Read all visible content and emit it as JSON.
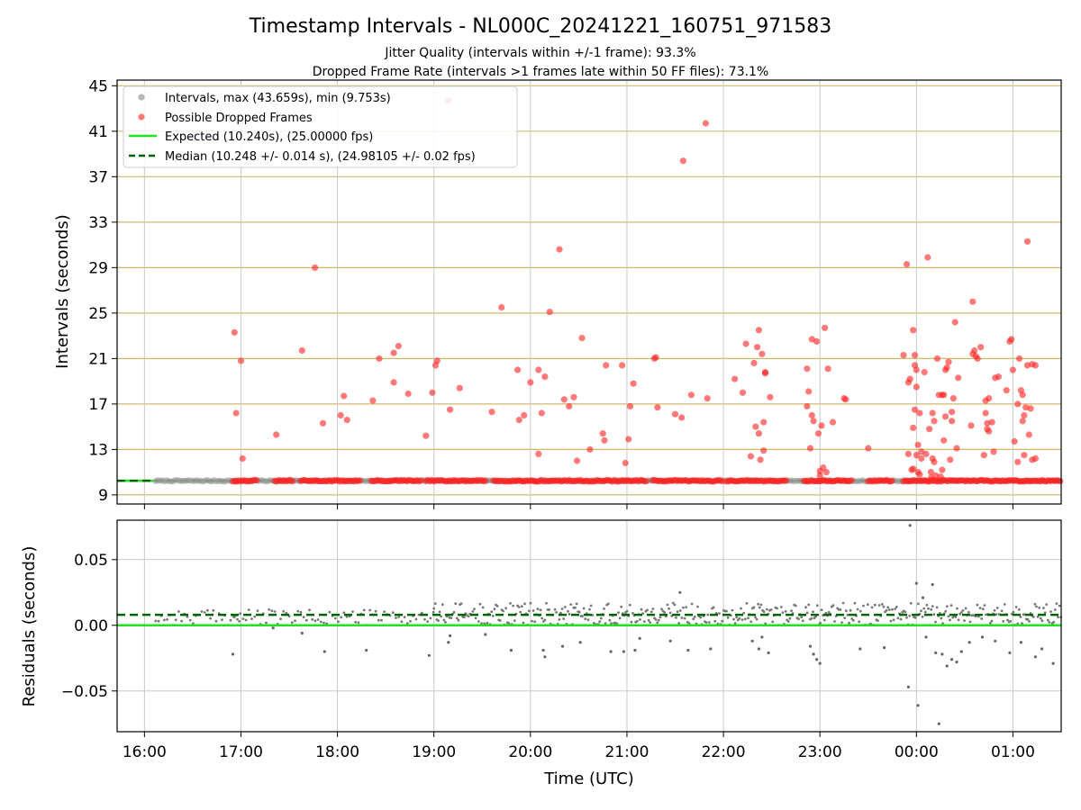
{
  "chart_data": [
    {
      "type": "scatter",
      "title": "Timestamp Intervals - NL000C_20241221_160751_971583",
      "subtitle_lines": [
        "Jitter Quality (intervals within +/-1 frame): 93.3%",
        "Dropped Frame Rate (intervals >1 frames late within 50 FF files): 73.1%"
      ],
      "xlabel": "",
      "ylabel": "Intervals (seconds)",
      "xlim": [
        "15:43",
        "01:30"
      ],
      "ylim": [
        8.2,
        45.5
      ],
      "ytick_labels": [
        "9",
        "13",
        "17",
        "21",
        "25",
        "29",
        "33",
        "37",
        "41",
        "45"
      ],
      "grid": true,
      "legend_position": "upper-left",
      "legend": [
        "Intervals, max (43.659s), min (9.753s)",
        "Possible Dropped Frames",
        "Expected (10.240s), (25.00000 fps)",
        "Median (10.248 +/- 0.014 s), (24.98105 +/- 0.02 fps)"
      ],
      "colors": {
        "intervals": "#9a9a9a",
        "dropped": "#ff2020",
        "expected": "#1ee41e",
        "median": "#006400",
        "hgrid": "#d2b86e",
        "vgrid": "#c8c8c8"
      },
      "expected_value": 10.24,
      "median_value": 10.248,
      "normal_interval_segments": [
        [
          "16:07",
          "01:30"
        ]
      ],
      "dropped_baseline_segments": [
        [
          "16:55",
          "17:10"
        ],
        [
          "17:21",
          "17:33"
        ],
        [
          "17:37",
          "18:14"
        ],
        [
          "18:21",
          "18:53"
        ],
        [
          "18:55",
          "19:33"
        ],
        [
          "19:37",
          "21:12"
        ],
        [
          "21:16",
          "22:00"
        ],
        [
          "22:02",
          "22:40"
        ],
        [
          "22:50",
          "23:20"
        ],
        [
          "23:30",
          "23:45"
        ],
        [
          "23:52",
          "01:30"
        ]
      ],
      "dropped_points": [
        [
          "16:56",
          23.3
        ],
        [
          "16:57",
          16.2
        ],
        [
          "17:00",
          20.8
        ],
        [
          "17:01",
          12.2
        ],
        [
          "17:22",
          14.3
        ],
        [
          "17:38",
          21.7
        ],
        [
          "17:46",
          29.0
        ],
        [
          "17:51",
          15.3
        ],
        [
          "18:02",
          16.0
        ],
        [
          "18:04",
          17.7
        ],
        [
          "18:06",
          15.6
        ],
        [
          "18:22",
          17.3
        ],
        [
          "18:26",
          21.0
        ],
        [
          "18:35",
          21.5
        ],
        [
          "18:35",
          18.9
        ],
        [
          "18:38",
          22.1
        ],
        [
          "18:44",
          17.9
        ],
        [
          "18:55",
          14.2
        ],
        [
          "18:59",
          18.0
        ],
        [
          "19:01",
          20.4
        ],
        [
          "19:02",
          20.8
        ],
        [
          "19:09",
          43.7
        ],
        [
          "19:10",
          16.5
        ],
        [
          "19:16",
          18.4
        ],
        [
          "19:36",
          16.3
        ],
        [
          "19:42",
          25.5
        ],
        [
          "19:52",
          20.0
        ],
        [
          "19:53",
          15.6
        ],
        [
          "19:56",
          16.0
        ],
        [
          "20:00",
          18.9
        ],
        [
          "20:05",
          12.6
        ],
        [
          "20:05",
          20.0
        ],
        [
          "20:07",
          16.2
        ],
        [
          "20:09",
          19.4
        ],
        [
          "20:12",
          25.1
        ],
        [
          "20:18",
          30.6
        ],
        [
          "20:21",
          17.4
        ],
        [
          "20:24",
          16.8
        ],
        [
          "20:27",
          17.6
        ],
        [
          "20:29",
          12.0
        ],
        [
          "20:32",
          22.8
        ],
        [
          "20:37",
          13.0
        ],
        [
          "20:45",
          14.4
        ],
        [
          "20:46",
          13.8
        ],
        [
          "20:47",
          20.4
        ],
        [
          "20:57",
          20.4
        ],
        [
          "20:59",
          11.8
        ],
        [
          "21:01",
          13.9
        ],
        [
          "21:02",
          16.8
        ],
        [
          "21:04",
          18.8
        ],
        [
          "21:17",
          21.0
        ],
        [
          "21:18",
          21.1
        ],
        [
          "21:19",
          16.7
        ],
        [
          "21:30",
          16.1
        ],
        [
          "21:34",
          15.8
        ],
        [
          "21:35",
          38.4
        ],
        [
          "21:40",
          17.8
        ],
        [
          "21:49",
          41.7
        ],
        [
          "21:50",
          17.5
        ],
        [
          "22:07",
          19.2
        ],
        [
          "22:12",
          18.0
        ],
        [
          "22:14",
          22.3
        ],
        [
          "22:17",
          12.4
        ],
        [
          "22:19",
          20.6
        ],
        [
          "22:20",
          15.0
        ],
        [
          "22:21",
          22.0
        ],
        [
          "22:22",
          23.5
        ],
        [
          "22:22",
          14.4
        ],
        [
          "22:23",
          12.1
        ],
        [
          "22:24",
          21.4
        ],
        [
          "22:25",
          15.4
        ],
        [
          "22:25",
          12.9
        ],
        [
          "22:26",
          19.8
        ],
        [
          "22:26",
          19.7
        ],
        [
          "22:29",
          17.6
        ],
        [
          "22:52",
          16.8
        ],
        [
          "22:52",
          20.1
        ],
        [
          "22:53",
          18.1
        ],
        [
          "22:54",
          13.1
        ],
        [
          "22:55",
          16.0
        ],
        [
          "22:55",
          22.7
        ],
        [
          "22:56",
          15.5
        ],
        [
          "22:58",
          22.5
        ],
        [
          "22:59",
          14.4
        ],
        [
          "23:00",
          10.7
        ],
        [
          "23:00",
          11.1
        ],
        [
          "23:01",
          15.1
        ],
        [
          "23:02",
          11.4
        ],
        [
          "23:03",
          23.7
        ],
        [
          "23:04",
          11.0
        ],
        [
          "23:05",
          20.1
        ],
        [
          "23:08",
          15.4
        ],
        [
          "23:15",
          17.5
        ],
        [
          "23:16",
          17.4
        ],
        [
          "23:30",
          13.1
        ],
        [
          "23:52",
          21.3
        ],
        [
          "23:54",
          29.3
        ],
        [
          "23:55",
          12.6
        ],
        [
          "23:55",
          18.9
        ],
        [
          "23:56",
          19.2
        ],
        [
          "23:57",
          11.2
        ],
        [
          "23:58",
          23.5
        ],
        [
          "23:58",
          11.3
        ],
        [
          "23:58",
          14.9
        ],
        [
          "23:59",
          20.4
        ],
        [
          "23:59",
          21.3
        ],
        [
          "23:59",
          16.5
        ],
        [
          "00:00",
          12.5
        ],
        [
          "00:00",
          20.0
        ],
        [
          "00:00",
          18.5
        ],
        [
          "00:01",
          13.4
        ],
        [
          "00:01",
          11.0
        ],
        [
          "00:02",
          16.2
        ],
        [
          "00:02",
          10.8
        ],
        [
          "00:03",
          12.2
        ],
        [
          "00:03",
          12.8
        ],
        [
          "00:05",
          19.8
        ],
        [
          "00:06",
          12.6
        ],
        [
          "00:07",
          29.9
        ],
        [
          "00:08",
          14.8
        ],
        [
          "00:09",
          10.5
        ],
        [
          "00:09",
          11.0
        ],
        [
          "00:10",
          12.2
        ],
        [
          "00:10",
          16.2
        ],
        [
          "00:11",
          15.5
        ],
        [
          "00:11",
          11.9
        ],
        [
          "00:12",
          10.7
        ],
        [
          "00:13",
          21.0
        ],
        [
          "00:14",
          17.8
        ],
        [
          "00:15",
          10.6
        ],
        [
          "00:16",
          11.2
        ],
        [
          "00:16",
          17.8
        ],
        [
          "00:17",
          13.8
        ],
        [
          "00:17",
          17.8
        ],
        [
          "00:18",
          15.9
        ],
        [
          "00:18",
          20.0
        ],
        [
          "00:19",
          20.2
        ],
        [
          "00:20",
          20.7
        ],
        [
          "00:21",
          12.1
        ],
        [
          "00:22",
          16.3
        ],
        [
          "00:22",
          15.5
        ],
        [
          "00:23",
          17.5
        ],
        [
          "00:24",
          24.2
        ],
        [
          "00:25",
          13.1
        ],
        [
          "00:26",
          19.3
        ],
        [
          "00:34",
          15.1
        ],
        [
          "00:35",
          26.0
        ],
        [
          "00:35",
          21.4
        ],
        [
          "00:36",
          21.7
        ],
        [
          "00:37",
          21.2
        ],
        [
          "00:38",
          21.0
        ],
        [
          "00:40",
          22.0
        ],
        [
          "00:42",
          12.5
        ],
        [
          "00:43",
          16.2
        ],
        [
          "00:43",
          17.3
        ],
        [
          "00:44",
          14.8
        ],
        [
          "00:44",
          15.3
        ],
        [
          "00:45",
          17.5
        ],
        [
          "00:45",
          14.6
        ],
        [
          "00:47",
          15.4
        ],
        [
          "00:48",
          12.8
        ],
        [
          "00:49",
          19.3
        ],
        [
          "00:51",
          19.4
        ],
        [
          "00:56",
          18.2
        ],
        [
          "00:58",
          22.5
        ],
        [
          "00:59",
          22.7
        ],
        [
          "01:00",
          20.0
        ],
        [
          "01:01",
          13.7
        ],
        [
          "01:03",
          11.9
        ],
        [
          "01:03",
          17.0
        ],
        [
          "01:04",
          21.0
        ],
        [
          "01:05",
          18.2
        ],
        [
          "01:06",
          17.8
        ],
        [
          "01:06",
          15.5
        ],
        [
          "01:07",
          12.5
        ],
        [
          "01:07",
          16.0
        ],
        [
          "01:08",
          16.7
        ],
        [
          "01:09",
          20.4
        ],
        [
          "01:09",
          31.3
        ],
        [
          "01:10",
          14.3
        ],
        [
          "01:11",
          16.6
        ],
        [
          "01:12",
          20.5
        ],
        [
          "01:12",
          12.1
        ],
        [
          "01:14",
          12.2
        ],
        [
          "01:14",
          20.4
        ]
      ]
    },
    {
      "type": "scatter",
      "title": "",
      "xlabel": "Time (UTC)",
      "ylabel": "Residuals (seconds)",
      "xlim": [
        "15:43",
        "01:30"
      ],
      "ylim": [
        -0.081,
        0.08
      ],
      "xtick_labels": [
        "16:00",
        "17:00",
        "18:00",
        "19:00",
        "20:00",
        "21:00",
        "22:00",
        "23:00",
        "00:00",
        "01:00"
      ],
      "ytick_labels": [
        "−0.05",
        "0.00",
        "0.05"
      ],
      "ytick_values": [
        -0.05,
        0.0,
        0.05
      ],
      "grid": true,
      "zero_line_value": 0.0,
      "median_residual": 0.008,
      "dense_band": {
        "segments": [
          [
            "16:07",
            "17:00"
          ],
          [
            "16:56",
            "19:00"
          ],
          [
            "19:00",
            "01:30"
          ]
        ],
        "low": 0.0,
        "high": [
          0.012,
          0.012,
          0.017
        ]
      },
      "outlier_points": [
        [
          "16:55",
          -0.022
        ],
        [
          "17:20",
          -0.002
        ],
        [
          "17:38",
          -0.006
        ],
        [
          "17:52",
          -0.02
        ],
        [
          "18:18",
          -0.019
        ],
        [
          "18:57",
          -0.023
        ],
        [
          "19:09",
          -0.013
        ],
        [
          "19:10",
          -0.008
        ],
        [
          "19:32",
          -0.007
        ],
        [
          "19:48",
          -0.019
        ],
        [
          "20:08",
          -0.019
        ],
        [
          "20:09",
          -0.024
        ],
        [
          "20:20",
          -0.016
        ],
        [
          "20:31",
          -0.013
        ],
        [
          "20:50",
          -0.02
        ],
        [
          "20:58",
          -0.02
        ],
        [
          "21:05",
          -0.019
        ],
        [
          "21:08",
          -0.01
        ],
        [
          "21:27",
          -0.012
        ],
        [
          "21:33",
          0.025
        ],
        [
          "21:38",
          -0.019
        ],
        [
          "21:52",
          -0.018
        ],
        [
          "22:18",
          -0.012
        ],
        [
          "22:22",
          -0.018
        ],
        [
          "22:24",
          -0.009
        ],
        [
          "22:28",
          -0.021
        ],
        [
          "22:54",
          -0.016
        ],
        [
          "22:56",
          -0.022
        ],
        [
          "22:58",
          -0.026
        ],
        [
          "23:00",
          -0.029
        ],
        [
          "23:25",
          -0.018
        ],
        [
          "23:40",
          -0.017
        ],
        [
          "23:55",
          -0.047
        ],
        [
          "23:56",
          0.076
        ],
        [
          "00:00",
          0.032
        ],
        [
          "00:01",
          -0.061
        ],
        [
          "00:04",
          0.021
        ],
        [
          "00:06",
          -0.009
        ],
        [
          "00:10",
          0.031
        ],
        [
          "00:12",
          -0.021
        ],
        [
          "00:14",
          -0.075
        ],
        [
          "00:16",
          -0.022
        ],
        [
          "00:19",
          -0.031
        ],
        [
          "00:22",
          -0.026
        ],
        [
          "00:25",
          -0.028
        ],
        [
          "00:28",
          -0.02
        ],
        [
          "00:33",
          -0.013
        ],
        [
          "00:41",
          -0.009
        ],
        [
          "00:49",
          -0.012
        ],
        [
          "00:58",
          -0.021
        ],
        [
          "01:05",
          -0.013
        ],
        [
          "01:14",
          -0.024
        ],
        [
          "01:18",
          -0.018
        ],
        [
          "01:25",
          -0.029
        ]
      ]
    }
  ]
}
